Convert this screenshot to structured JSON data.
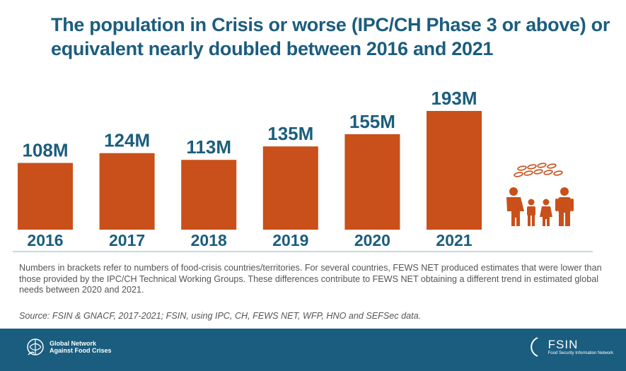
{
  "title_lines": [
    "The population in Crisis or worse (IPC/CH Phase 3 or above) or",
    "equivalent nearly doubled between 2016 and 2021"
  ],
  "chart_data": {
    "type": "bar",
    "categories": [
      "2016",
      "2017",
      "2018",
      "2019",
      "2020",
      "2021"
    ],
    "values": [
      108,
      124,
      113,
      135,
      155,
      193
    ],
    "data_labels": [
      "108M",
      "124M",
      "113M",
      "135M",
      "155M",
      "193M"
    ],
    "title": "",
    "xlabel": "",
    "ylabel": "",
    "grid": false,
    "bar_color": "#c9501a"
  },
  "note": "Numbers in brackets refer to numbers of food-crisis countries/territories. For several countries, FEWS NET produced estimates that were lower than those provided by the IPC/CH Technical Working Groups. These differences contribute to FEWS NET obtaining a different trend in estimated global needs between 2020 and 2021.",
  "source": "Source: FSIN & GNACF, 2017-2021; FSIN, using IPC, CH, FEWS NET, WFP, HNO and SEFSec data.",
  "footer": {
    "left_logo_line1": "Global Network",
    "left_logo_line2": "Against Food Crises",
    "right_logo_name": "FSIN",
    "right_logo_sub": "Food Security Information Network"
  },
  "colors": {
    "title": "#1b5d7e",
    "bar": "#c9501a",
    "footer": "#1b5d7e",
    "axis": "#8fb0c4"
  },
  "icons": [
    "grain-icon",
    "family-icon",
    "globe-wheat-icon"
  ]
}
